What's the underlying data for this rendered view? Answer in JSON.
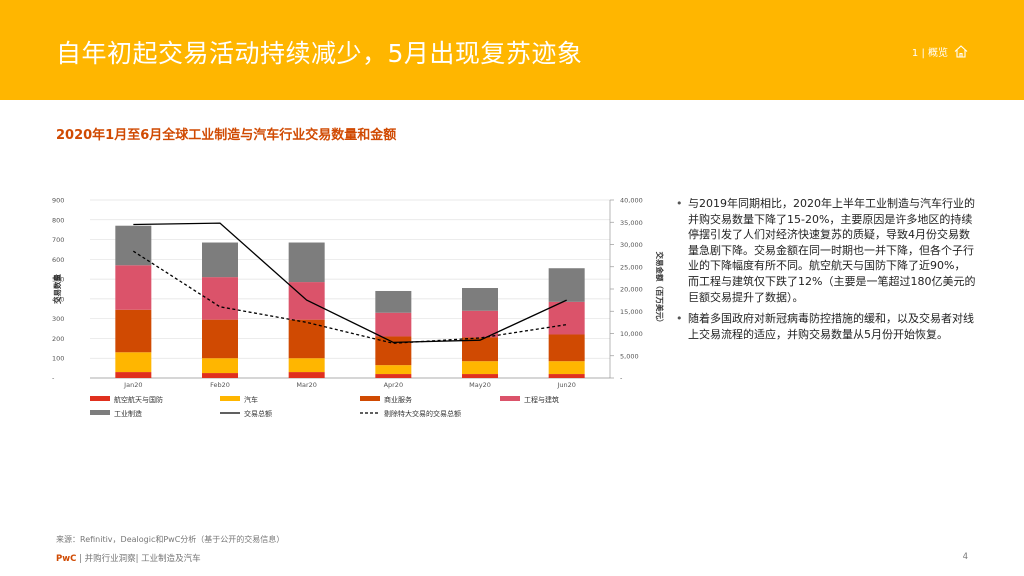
{
  "header": {
    "title": "自年初起交易活动持续减少，5月出现复苏迹象",
    "nav_label": "1 | 概览",
    "home_icon": "home-icon"
  },
  "chart_title": "2020年1月至6月全球工业制造与汽车行业交易数量和金额",
  "chart_data": {
    "type": "bar",
    "stacked": true,
    "categories": [
      "Jan20",
      "Feb20",
      "Mar20",
      "Apr20",
      "May20",
      "Jun20"
    ],
    "ylabel": "交易数量",
    "y2label": "交易金额（百万美元）",
    "ylim": [
      0,
      900
    ],
    "y2lim": [
      0,
      40000
    ],
    "yticks": [
      {
        "v": 0,
        "t": "-"
      },
      {
        "v": 100,
        "t": "100"
      },
      {
        "v": 200,
        "t": "200"
      },
      {
        "v": 300,
        "t": "300"
      },
      {
        "v": 400,
        "t": "400"
      },
      {
        "v": 500,
        "t": "500"
      },
      {
        "v": 600,
        "t": "600"
      },
      {
        "v": 700,
        "t": "700"
      },
      {
        "v": 800,
        "t": "800"
      },
      {
        "v": 900,
        "t": "900"
      }
    ],
    "y2ticks": [
      {
        "v": 0,
        "t": "-"
      },
      {
        "v": 5000,
        "t": "5,000"
      },
      {
        "v": 10000,
        "t": "10,000"
      },
      {
        "v": 15000,
        "t": "15,000"
      },
      {
        "v": 20000,
        "t": "20,000"
      },
      {
        "v": 25000,
        "t": "25,000"
      },
      {
        "v": 30000,
        "t": "30,000"
      },
      {
        "v": 35000,
        "t": "35,000"
      },
      {
        "v": 40000,
        "t": "40,000"
      }
    ],
    "series": [
      {
        "name": "航空航天与国防",
        "color": "#E0301E",
        "values": [
          30,
          25,
          30,
          20,
          20,
          20
        ]
      },
      {
        "name": "汽车",
        "color": "#FFB600",
        "values": [
          100,
          75,
          70,
          45,
          65,
          65
        ]
      },
      {
        "name": "商业服务",
        "color": "#D04A02",
        "values": [
          215,
          195,
          195,
          145,
          120,
          135
        ]
      },
      {
        "name": "工程与建筑",
        "color": "#DB536A",
        "values": [
          225,
          215,
          190,
          120,
          135,
          165
        ]
      },
      {
        "name": "工业制造",
        "color": "#7D7D7D",
        "values": [
          200,
          175,
          200,
          110,
          115,
          170
        ]
      }
    ],
    "lines": [
      {
        "name": "交易总额",
        "style": "solid",
        "color": "#000000",
        "values": [
          34500,
          34800,
          17500,
          8000,
          8500,
          17500
        ]
      },
      {
        "name": "剔除特大交易的交易总额",
        "style": "dashed",
        "color": "#000000",
        "values": [
          28500,
          16000,
          12500,
          7800,
          9000,
          12000
        ]
      }
    ],
    "legend_order": [
      "航空航天与国防",
      "汽车",
      "商业服务",
      "工程与建筑",
      "工业制造",
      "交易总额",
      "剔除特大交易的交易总额"
    ]
  },
  "bullets": [
    "与2019年同期相比，2020年上半年工业制造与汽车行业的并购交易数量下降了15-20%，主要原因是许多地区的持续停摆引发了人们对经济快速复苏的质疑，导致4月份交易数量急剧下降。交易金额在同一时期也一并下降，但各个子行业的下降幅度有所不同。航空航天与国防下降了近90%，而工程与建筑仅下跌了12%（主要是一笔超过180亿美元的巨额交易提升了数据）。",
    "随着多国政府对新冠病毒防控措施的缓和，以及交易者对线上交易流程的适应，并购交易数量从5月份开始恢复。"
  ],
  "source": "来源：Refinitiv，Dealogic和PwC分析（基于公开的交易信息）",
  "footer": {
    "brand": "PwC",
    "text": " | 并购行业洞察| 工业制造及汽车",
    "page": "4"
  }
}
